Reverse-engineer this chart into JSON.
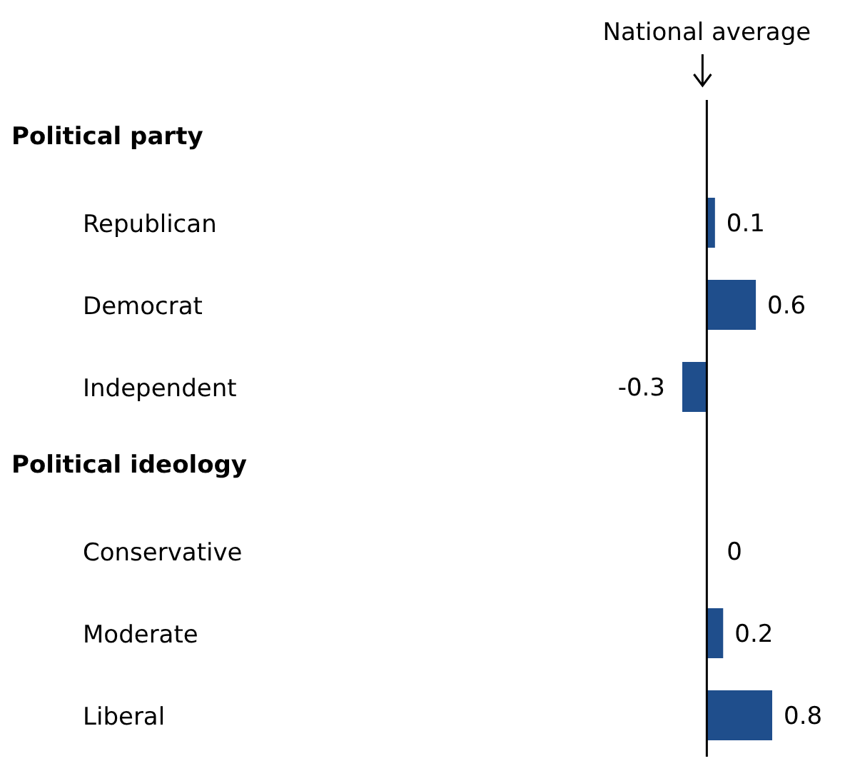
{
  "chart_data": {
    "type": "bar",
    "orientation": "horizontal",
    "categories": [
      null,
      "Republican",
      "Democrat",
      "Independent",
      null,
      "Conservative",
      "Moderate",
      "Liberal"
    ],
    "values": [
      null,
      0.1,
      0.6,
      -0.3,
      null,
      0,
      0.2,
      0.8
    ],
    "color": "#1f4e8c",
    "data_labels": true,
    "annotations": [
      "Political party",
      "Political ideology"
    ],
    "ref_lines": [
      {
        "axis": "x",
        "value": 0,
        "label": "National average",
        "color": "#000000"
      }
    ]
  }
}
